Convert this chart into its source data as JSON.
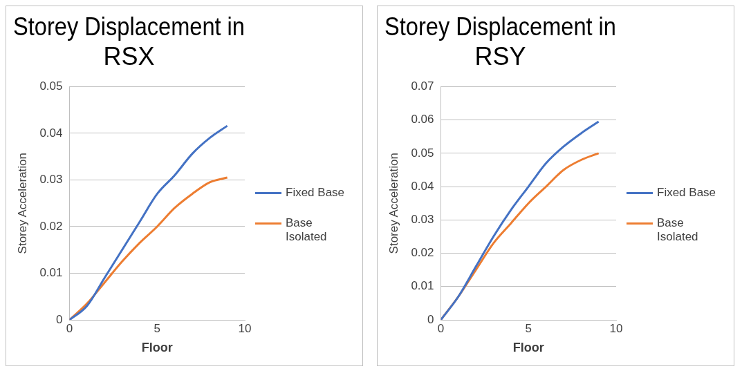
{
  "chart_data": [
    {
      "type": "line",
      "title": [
        "Storey Displacement in",
        "RSX"
      ],
      "xlabel": "Floor",
      "ylabel": "Storey Acceleration",
      "x": [
        0,
        1,
        2,
        3,
        4,
        5,
        6,
        7,
        8,
        9
      ],
      "xlim": [
        0,
        10
      ],
      "xticks": [
        0,
        5,
        10
      ],
      "ylim": [
        0,
        0.05
      ],
      "yticks": [
        0,
        0.01,
        0.02,
        0.03,
        0.04,
        0.05
      ],
      "grid": "y",
      "legend": "right",
      "marker": "none",
      "series": [
        {
          "name": "Fixed Base",
          "color": "#4472c4",
          "values": [
            0,
            0.003,
            0.009,
            0.015,
            0.021,
            0.027,
            0.031,
            0.0356,
            0.039,
            0.0416
          ]
        },
        {
          "name": "Base Isolated",
          "color": "#ed7d31",
          "values": [
            0,
            0.0035,
            0.008,
            0.0125,
            0.0165,
            0.02,
            0.024,
            0.027,
            0.0295,
            0.0305
          ]
        }
      ]
    },
    {
      "type": "line",
      "title": [
        "Storey Displacement in",
        "RSY"
      ],
      "xlabel": "Floor",
      "ylabel": "Storey Acceleration",
      "x": [
        0,
        1,
        2,
        3,
        4,
        5,
        6,
        7,
        8,
        9
      ],
      "xlim": [
        0,
        10
      ],
      "xticks": [
        0,
        5,
        10
      ],
      "ylim": [
        0,
        0.07
      ],
      "yticks": [
        0,
        0.01,
        0.02,
        0.03,
        0.04,
        0.05,
        0.06,
        0.07
      ],
      "grid": "y",
      "legend": "right",
      "marker": "none",
      "series": [
        {
          "name": "Fixed Base",
          "color": "#4472c4",
          "values": [
            0,
            0.007,
            0.016,
            0.025,
            0.033,
            0.04,
            0.047,
            0.052,
            0.056,
            0.0595
          ]
        },
        {
          "name": "Base Isolated",
          "color": "#ed7d31",
          "values": [
            0,
            0.007,
            0.015,
            0.023,
            0.029,
            0.035,
            0.04,
            0.045,
            0.048,
            0.05
          ]
        }
      ]
    }
  ]
}
